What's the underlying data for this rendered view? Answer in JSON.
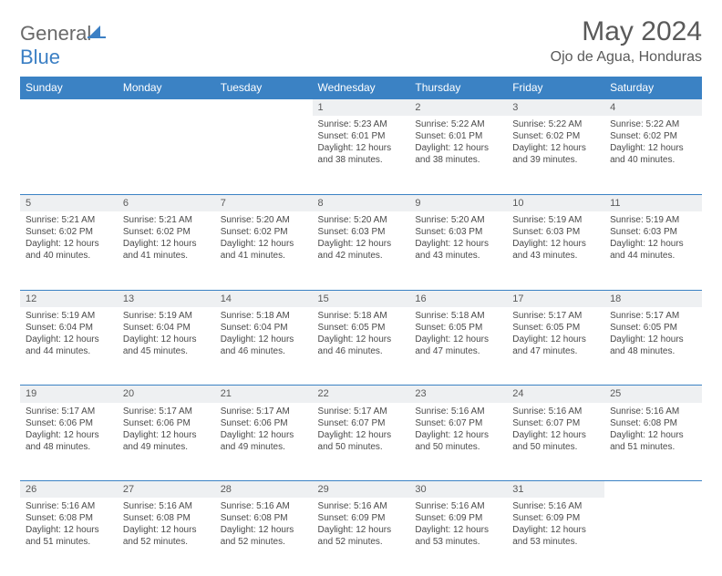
{
  "logo": {
    "text1": "General",
    "text2": "Blue"
  },
  "title": "May 2024",
  "subtitle": "Ojo de Agua, Honduras",
  "header_color": "#3b82c4",
  "border_color": "#3b82c4",
  "daynum_bg": "#eef0f2",
  "text_color": "#4a4a4a",
  "columns": [
    "Sunday",
    "Monday",
    "Tuesday",
    "Wednesday",
    "Thursday",
    "Friday",
    "Saturday"
  ],
  "weeks": [
    [
      null,
      null,
      null,
      {
        "n": "1",
        "sr": "5:23 AM",
        "ss": "6:01 PM",
        "dl": "12 hours and 38 minutes."
      },
      {
        "n": "2",
        "sr": "5:22 AM",
        "ss": "6:01 PM",
        "dl": "12 hours and 38 minutes."
      },
      {
        "n": "3",
        "sr": "5:22 AM",
        "ss": "6:02 PM",
        "dl": "12 hours and 39 minutes."
      },
      {
        "n": "4",
        "sr": "5:22 AM",
        "ss": "6:02 PM",
        "dl": "12 hours and 40 minutes."
      }
    ],
    [
      {
        "n": "5",
        "sr": "5:21 AM",
        "ss": "6:02 PM",
        "dl": "12 hours and 40 minutes."
      },
      {
        "n": "6",
        "sr": "5:21 AM",
        "ss": "6:02 PM",
        "dl": "12 hours and 41 minutes."
      },
      {
        "n": "7",
        "sr": "5:20 AM",
        "ss": "6:02 PM",
        "dl": "12 hours and 41 minutes."
      },
      {
        "n": "8",
        "sr": "5:20 AM",
        "ss": "6:03 PM",
        "dl": "12 hours and 42 minutes."
      },
      {
        "n": "9",
        "sr": "5:20 AM",
        "ss": "6:03 PM",
        "dl": "12 hours and 43 minutes."
      },
      {
        "n": "10",
        "sr": "5:19 AM",
        "ss": "6:03 PM",
        "dl": "12 hours and 43 minutes."
      },
      {
        "n": "11",
        "sr": "5:19 AM",
        "ss": "6:03 PM",
        "dl": "12 hours and 44 minutes."
      }
    ],
    [
      {
        "n": "12",
        "sr": "5:19 AM",
        "ss": "6:04 PM",
        "dl": "12 hours and 44 minutes."
      },
      {
        "n": "13",
        "sr": "5:19 AM",
        "ss": "6:04 PM",
        "dl": "12 hours and 45 minutes."
      },
      {
        "n": "14",
        "sr": "5:18 AM",
        "ss": "6:04 PM",
        "dl": "12 hours and 46 minutes."
      },
      {
        "n": "15",
        "sr": "5:18 AM",
        "ss": "6:05 PM",
        "dl": "12 hours and 46 minutes."
      },
      {
        "n": "16",
        "sr": "5:18 AM",
        "ss": "6:05 PM",
        "dl": "12 hours and 47 minutes."
      },
      {
        "n": "17",
        "sr": "5:17 AM",
        "ss": "6:05 PM",
        "dl": "12 hours and 47 minutes."
      },
      {
        "n": "18",
        "sr": "5:17 AM",
        "ss": "6:05 PM",
        "dl": "12 hours and 48 minutes."
      }
    ],
    [
      {
        "n": "19",
        "sr": "5:17 AM",
        "ss": "6:06 PM",
        "dl": "12 hours and 48 minutes."
      },
      {
        "n": "20",
        "sr": "5:17 AM",
        "ss": "6:06 PM",
        "dl": "12 hours and 49 minutes."
      },
      {
        "n": "21",
        "sr": "5:17 AM",
        "ss": "6:06 PM",
        "dl": "12 hours and 49 minutes."
      },
      {
        "n": "22",
        "sr": "5:17 AM",
        "ss": "6:07 PM",
        "dl": "12 hours and 50 minutes."
      },
      {
        "n": "23",
        "sr": "5:16 AM",
        "ss": "6:07 PM",
        "dl": "12 hours and 50 minutes."
      },
      {
        "n": "24",
        "sr": "5:16 AM",
        "ss": "6:07 PM",
        "dl": "12 hours and 50 minutes."
      },
      {
        "n": "25",
        "sr": "5:16 AM",
        "ss": "6:08 PM",
        "dl": "12 hours and 51 minutes."
      }
    ],
    [
      {
        "n": "26",
        "sr": "5:16 AM",
        "ss": "6:08 PM",
        "dl": "12 hours and 51 minutes."
      },
      {
        "n": "27",
        "sr": "5:16 AM",
        "ss": "6:08 PM",
        "dl": "12 hours and 52 minutes."
      },
      {
        "n": "28",
        "sr": "5:16 AM",
        "ss": "6:08 PM",
        "dl": "12 hours and 52 minutes."
      },
      {
        "n": "29",
        "sr": "5:16 AM",
        "ss": "6:09 PM",
        "dl": "12 hours and 52 minutes."
      },
      {
        "n": "30",
        "sr": "5:16 AM",
        "ss": "6:09 PM",
        "dl": "12 hours and 53 minutes."
      },
      {
        "n": "31",
        "sr": "5:16 AM",
        "ss": "6:09 PM",
        "dl": "12 hours and 53 minutes."
      },
      null
    ]
  ],
  "labels": {
    "sunrise": "Sunrise:",
    "sunset": "Sunset:",
    "daylight": "Daylight:"
  }
}
